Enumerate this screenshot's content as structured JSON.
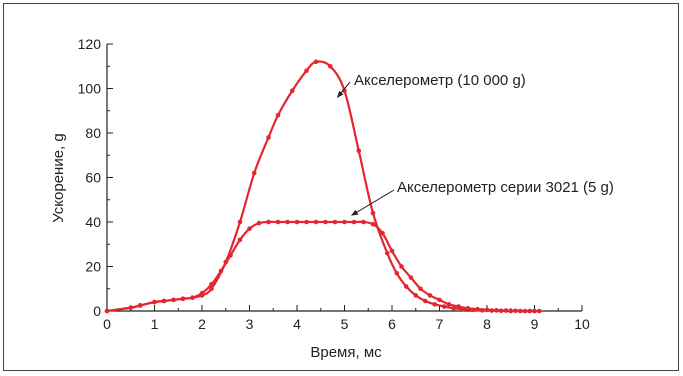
{
  "chart_data": {
    "type": "line",
    "title": "",
    "xlabel": "Время, мс",
    "ylabel": "Ускорение, g",
    "xlim": [
      0,
      10
    ],
    "ylim": [
      0,
      120
    ],
    "x_ticks": [
      "0",
      "1",
      "2",
      "3",
      "4",
      "5",
      "6",
      "7",
      "8",
      "9",
      "10"
    ],
    "y_ticks": [
      "0",
      "20",
      "40",
      "60",
      "80",
      "100",
      "120"
    ],
    "grid": false,
    "legend": "none",
    "line_color": "#e3262f",
    "series": [
      {
        "name": "Акселерометр (10 000 g)",
        "x": [
          0,
          0.5,
          0.7,
          1.0,
          1.2,
          1.4,
          1.6,
          1.8,
          2.0,
          2.2,
          2.5,
          2.8,
          3.1,
          3.4,
          3.6,
          3.9,
          4.2,
          4.4,
          4.7,
          5.0,
          5.3,
          5.6,
          5.9,
          6.1,
          6.3,
          6.5,
          6.7,
          6.9,
          7.1,
          7.3,
          7.5,
          7.7,
          7.9,
          8.1,
          8.3,
          8.5,
          8.7,
          8.9,
          9.1
        ],
        "y": [
          0,
          1.5,
          2.5,
          4,
          4.5,
          5,
          5.5,
          6,
          7,
          10,
          22,
          40,
          62,
          78,
          88,
          99,
          108,
          112,
          110,
          99,
          72,
          44,
          26,
          17,
          11,
          7,
          4.5,
          3,
          2,
          1.2,
          0.8,
          0.5,
          0.3,
          0.2,
          0.1,
          0,
          0,
          0,
          0
        ]
      },
      {
        "name": "Акселерометр серии 3021 (5 g)",
        "x": [
          0,
          0.5,
          0.7,
          1.0,
          1.2,
          1.4,
          1.6,
          1.8,
          2.0,
          2.2,
          2.4,
          2.6,
          2.8,
          3.0,
          3.2,
          3.4,
          3.6,
          3.8,
          4.0,
          4.2,
          4.4,
          4.6,
          4.8,
          5.0,
          5.2,
          5.4,
          5.6,
          5.8,
          6.0,
          6.2,
          6.4,
          6.6,
          6.8,
          7.0,
          7.2,
          7.4,
          7.6,
          7.8,
          8.0,
          8.2,
          8.4,
          8.6,
          8.8,
          9.0
        ],
        "y": [
          0,
          1.5,
          2.5,
          4,
          4.5,
          5,
          5.5,
          6,
          8,
          12,
          18,
          25,
          32,
          37,
          39.5,
          40,
          40,
          40,
          40,
          40,
          40,
          40,
          40,
          40,
          40,
          40,
          39,
          35,
          27,
          20,
          15,
          10,
          7,
          5,
          3,
          2,
          1.2,
          0.8,
          0.5,
          0.3,
          0.2,
          0.1,
          0,
          0
        ]
      }
    ],
    "annotations": [
      {
        "text": "Акселерометр (10 000 g)",
        "arrow_to": [
          4.85,
          96
        ]
      },
      {
        "text": "Акселерометр серии 3021 (5 g)",
        "arrow_to": [
          5.15,
          43
        ]
      }
    ]
  }
}
